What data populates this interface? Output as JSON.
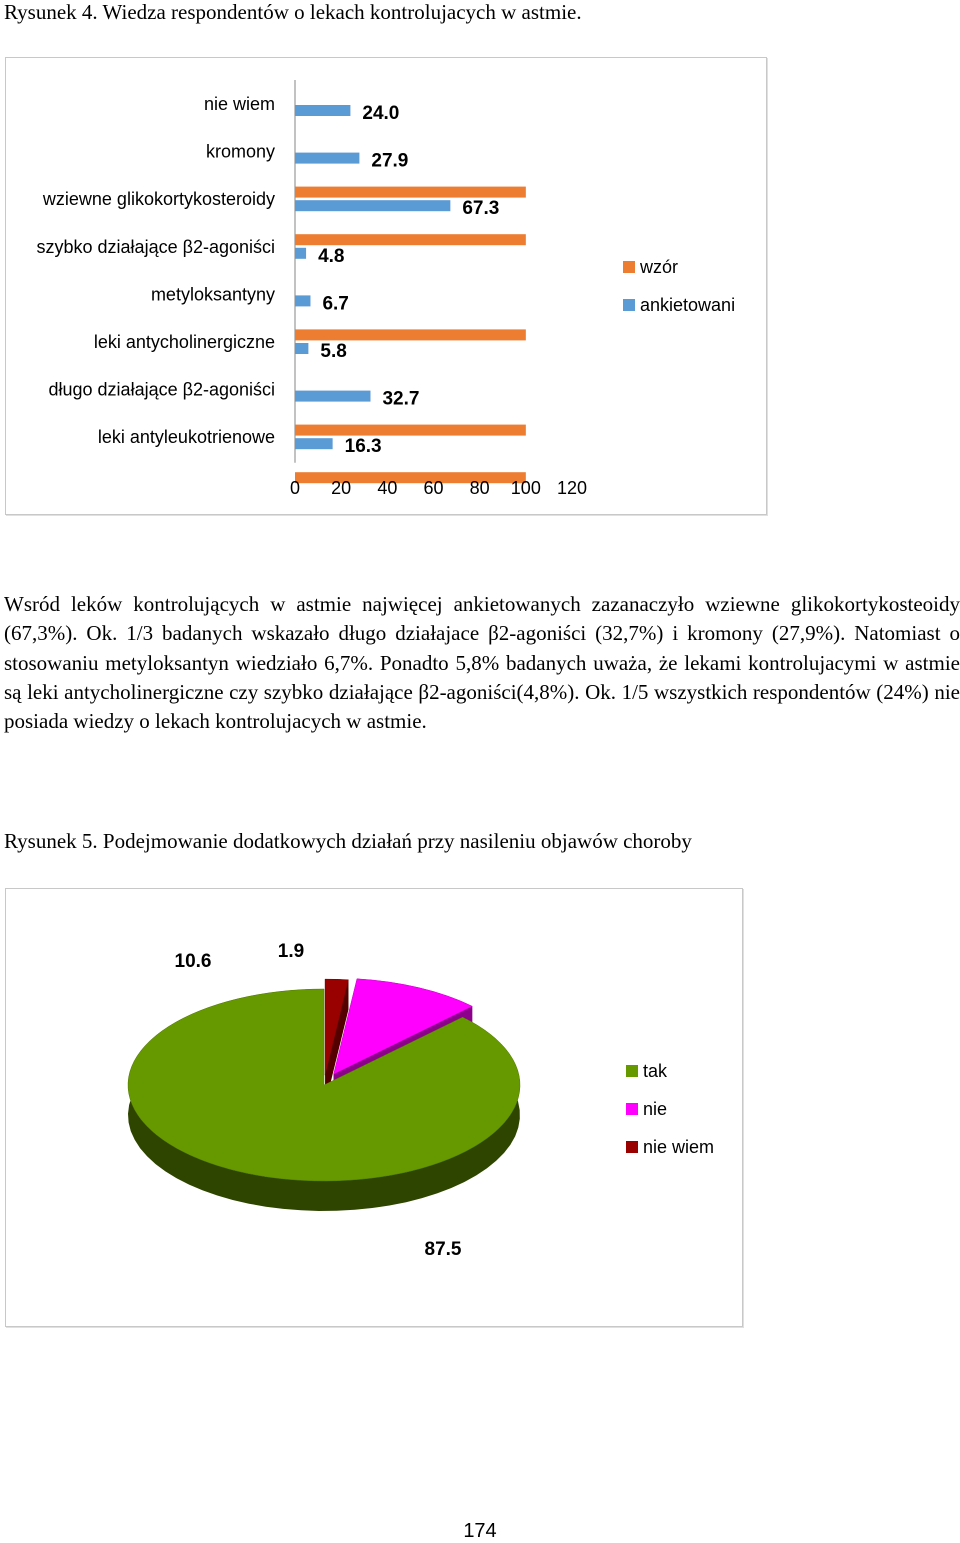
{
  "figure4": {
    "caption": "Rysunek 4. Wiedza respondentów o lekach kontrolujacych w astmie.",
    "chart_data": {
      "type": "bar",
      "orientation": "horizontal",
      "categories": [
        "nie wiem",
        "kromony",
        "wziewne glikokortykosteroidy",
        "szybko działające β2-agoniści",
        "metyloksantyny",
        "leki antycholinergiczne",
        "długo działające β2-agoniści",
        "leki antyleukotrienowe"
      ],
      "series": [
        {
          "name": "wzór",
          "color": "#ed7d31",
          "values": [
            0,
            100,
            100,
            0,
            100,
            0,
            100,
            100
          ]
        },
        {
          "name": "ankietowani",
          "color": "#5b9bd5",
          "values": [
            24.0,
            27.9,
            67.3,
            4.8,
            6.7,
            5.8,
            32.7,
            16.3
          ]
        }
      ],
      "data_labels": [
        "24.0",
        "27.9",
        "67.3",
        "4.8",
        "6.7",
        "5.8",
        "32.7",
        "16.3"
      ],
      "x_ticks": [
        "0",
        "20",
        "40",
        "60",
        "80",
        "100",
        "120"
      ],
      "xlim": [
        0,
        120
      ],
      "legend_position": "right",
      "grid": false
    }
  },
  "paragraph": "Wsród leków kontrolujących w astmie najwięcej ankietowanych zazanaczyło wziewne glikokortykosteoidy (67,3%). Ok. 1/3 badanych wskazało długo działajace β2-agoniści (32,7%) i kromony (27,9%). Natomiast o stosowaniu metyloksantyn wiedziało 6,7%. Ponadto 5,8% badanych uważa, że lekami kontrolujacymi w astmie są leki antycholinergiczne czy szybko działające β2-agoniści(4,8%). Ok. 1/5 wszystkich respondentów (24%) nie posiada wiedzy o lekach kontrolujacych w astmie.",
  "figure5": {
    "caption": "Rysunek 5. Podejmowanie dodatkowych działań przy nasileniu objawów choroby",
    "chart_data": {
      "type": "pie",
      "style": "3d-exploded",
      "slices": [
        {
          "label": "tak",
          "value": 87.5,
          "display": "87.5",
          "color": "#669900"
        },
        {
          "label": "nie",
          "value": 10.6,
          "display": "10.6",
          "color": "#ff00ff"
        },
        {
          "label": "nie wiem",
          "value": 1.9,
          "display": "1.9",
          "color": "#990000"
        }
      ],
      "legend_position": "right"
    }
  },
  "page_number": "174"
}
